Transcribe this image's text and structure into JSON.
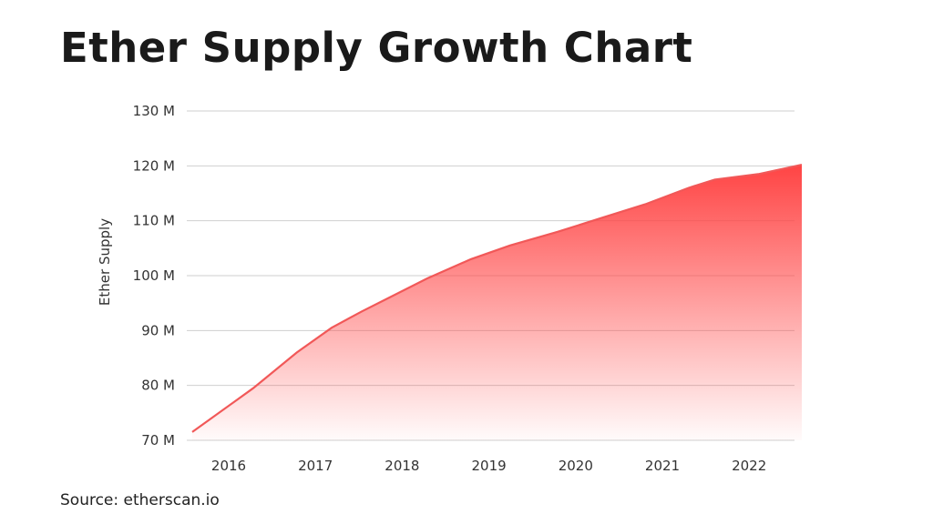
{
  "header": {
    "title": "Ether Supply Growth Chart"
  },
  "footer": {
    "source": "Source: etherscan.io"
  },
  "colors": {
    "accent": "#ff4444",
    "line": "#f15858",
    "grid": "#cfcfcf"
  },
  "chart_data": {
    "type": "area",
    "title": "Ether Supply Growth Chart",
    "xlabel": "",
    "ylabel": "Ether Supply",
    "x_tick_labels": [
      "2016",
      "2017",
      "2018",
      "2019",
      "2020",
      "2021",
      "2022"
    ],
    "y_tick_labels": [
      "70 M",
      "80 M",
      "90 M",
      "100 M",
      "110 M",
      "120 M",
      "130 M"
    ],
    "x_ticks": [
      2016,
      2017,
      2018,
      2019,
      2020,
      2021,
      2022
    ],
    "y_ticks": [
      70,
      80,
      90,
      100,
      110,
      120,
      130
    ],
    "xlim": [
      2015.6,
      2022.6
    ],
    "ylim": [
      70,
      130
    ],
    "grid": true,
    "x": [
      2015.6,
      2016.3,
      2016.8,
      2017.2,
      2017.55,
      2017.8,
      2018.3,
      2018.8,
      2019.25,
      2019.8,
      2020.3,
      2020.8,
      2021.3,
      2021.6,
      2022.1,
      2022.6
    ],
    "y": [
      71.5,
      79.5,
      86,
      90.5,
      93.5,
      95.5,
      99.5,
      103,
      105.5,
      108,
      110.5,
      113,
      116,
      117.5,
      118.5,
      120.2
    ]
  }
}
